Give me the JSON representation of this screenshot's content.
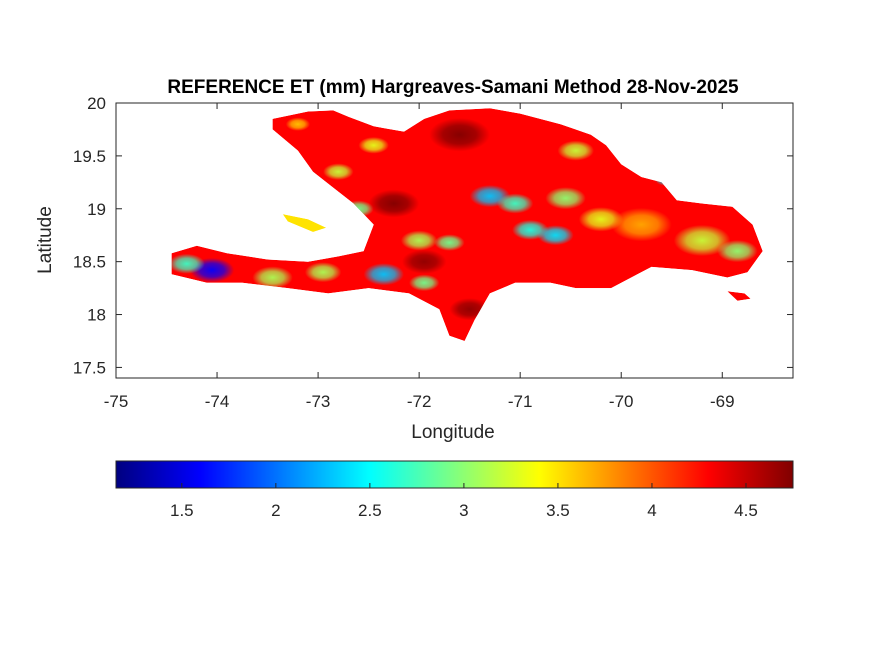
{
  "chart_data": {
    "type": "heatmap",
    "title": "REFERENCE ET (mm) Hargreaves-Samani Method  28-Nov-2025",
    "xlabel": "Longitude",
    "ylabel": "Latitude",
    "xlim": [
      -75,
      -68.3
    ],
    "ylim": [
      17.4,
      20
    ],
    "xticks": [
      -75,
      -74,
      -73,
      -72,
      -71,
      -70,
      -69
    ],
    "xtick_labels": [
      "-75",
      "-74",
      "-73",
      "-72",
      "-71",
      "-70",
      "-69"
    ],
    "yticks": [
      17.5,
      18,
      18.5,
      19,
      19.5,
      20
    ],
    "ytick_labels": [
      "17.5",
      "18",
      "18.5",
      "19",
      "19.5",
      "20"
    ],
    "grid": false,
    "colormap": "jet",
    "colorbar": {
      "orientation": "horizontal",
      "position": "bottom",
      "range": [
        1.15,
        4.75
      ],
      "ticks": [
        1.5,
        2,
        2.5,
        3,
        3.5,
        4,
        4.5
      ],
      "tick_labels": [
        "1.5",
        "2",
        "2.5",
        "3",
        "3.5",
        "4",
        "4.5"
      ]
    },
    "regions": [
      {
        "name": "main_island",
        "base_value": 4.3,
        "outline": [
          [
            -73.45,
            19.85
          ],
          [
            -73.1,
            19.92
          ],
          [
            -72.85,
            19.93
          ],
          [
            -72.7,
            19.87
          ],
          [
            -72.45,
            19.78
          ],
          [
            -72.15,
            19.73
          ],
          [
            -71.95,
            19.85
          ],
          [
            -71.7,
            19.93
          ],
          [
            -71.3,
            19.95
          ],
          [
            -71.0,
            19.9
          ],
          [
            -70.6,
            19.8
          ],
          [
            -70.3,
            19.7
          ],
          [
            -70.15,
            19.6
          ],
          [
            -70.0,
            19.42
          ],
          [
            -69.8,
            19.3
          ],
          [
            -69.6,
            19.25
          ],
          [
            -69.45,
            19.08
          ],
          [
            -69.2,
            19.05
          ],
          [
            -68.9,
            19.02
          ],
          [
            -68.7,
            18.85
          ],
          [
            -68.6,
            18.6
          ],
          [
            -68.75,
            18.4
          ],
          [
            -68.95,
            18.35
          ],
          [
            -69.3,
            18.42
          ],
          [
            -69.7,
            18.45
          ],
          [
            -70.1,
            18.25
          ],
          [
            -70.45,
            18.25
          ],
          [
            -70.7,
            18.3
          ],
          [
            -71.05,
            18.3
          ],
          [
            -71.3,
            18.2
          ],
          [
            -71.45,
            17.95
          ],
          [
            -71.55,
            17.75
          ],
          [
            -71.7,
            17.8
          ],
          [
            -71.8,
            18.05
          ],
          [
            -72.1,
            18.2
          ],
          [
            -72.5,
            18.25
          ],
          [
            -72.9,
            18.2
          ],
          [
            -73.3,
            18.25
          ],
          [
            -73.75,
            18.3
          ],
          [
            -74.1,
            18.3
          ],
          [
            -74.45,
            18.38
          ],
          [
            -74.45,
            18.58
          ],
          [
            -74.2,
            18.65
          ],
          [
            -73.9,
            18.58
          ],
          [
            -73.5,
            18.52
          ],
          [
            -73.1,
            18.5
          ],
          [
            -72.8,
            18.55
          ],
          [
            -72.55,
            18.6
          ],
          [
            -72.45,
            18.85
          ],
          [
            -72.65,
            19.05
          ],
          [
            -72.85,
            19.2
          ],
          [
            -73.05,
            19.35
          ],
          [
            -73.2,
            19.55
          ],
          [
            -73.45,
            19.75
          ]
        ]
      },
      {
        "name": "gonave_island",
        "base_value": 3.5,
        "outline": [
          [
            -73.35,
            18.95
          ],
          [
            -73.1,
            18.9
          ],
          [
            -72.92,
            18.82
          ],
          [
            -73.05,
            18.78
          ],
          [
            -73.3,
            18.88
          ]
        ]
      },
      {
        "name": "saona_island",
        "base_value": 4.3,
        "outline": [
          [
            -68.95,
            18.22
          ],
          [
            -68.78,
            18.2
          ],
          [
            -68.72,
            18.15
          ],
          [
            -68.85,
            18.13
          ]
        ]
      }
    ],
    "anomalies": [
      {
        "lon": -74.05,
        "lat": 18.42,
        "value": 1.6,
        "spread": 0.22
      },
      {
        "lon": -74.3,
        "lat": 18.48,
        "value": 2.7,
        "spread": 0.18
      },
      {
        "lon": -73.45,
        "lat": 18.35,
        "value": 3.1,
        "spread": 0.2
      },
      {
        "lon": -72.95,
        "lat": 18.4,
        "value": 3.1,
        "spread": 0.18
      },
      {
        "lon": -72.35,
        "lat": 18.38,
        "value": 2.3,
        "spread": 0.2
      },
      {
        "lon": -71.95,
        "lat": 18.3,
        "value": 2.9,
        "spread": 0.15
      },
      {
        "lon": -72.0,
        "lat": 18.7,
        "value": 3.1,
        "spread": 0.18
      },
      {
        "lon": -71.7,
        "lat": 18.68,
        "value": 2.9,
        "spread": 0.15
      },
      {
        "lon": -71.3,
        "lat": 19.12,
        "value": 2.3,
        "spread": 0.2
      },
      {
        "lon": -71.05,
        "lat": 19.05,
        "value": 2.7,
        "spread": 0.18
      },
      {
        "lon": -70.9,
        "lat": 18.8,
        "value": 2.6,
        "spread": 0.18
      },
      {
        "lon": -70.65,
        "lat": 18.75,
        "value": 2.4,
        "spread": 0.18
      },
      {
        "lon": -70.55,
        "lat": 19.1,
        "value": 3.0,
        "spread": 0.2
      },
      {
        "lon": -70.2,
        "lat": 18.9,
        "value": 3.3,
        "spread": 0.22
      },
      {
        "lon": -69.8,
        "lat": 18.85,
        "value": 3.7,
        "spread": 0.3
      },
      {
        "lon": -69.2,
        "lat": 18.7,
        "value": 3.2,
        "spread": 0.28
      },
      {
        "lon": -68.85,
        "lat": 18.6,
        "value": 3.0,
        "spread": 0.2
      },
      {
        "lon": -69.55,
        "lat": 19.28,
        "value": 2.4,
        "spread": 0.12
      },
      {
        "lon": -70.45,
        "lat": 19.55,
        "value": 3.2,
        "spread": 0.18
      },
      {
        "lon": -72.6,
        "lat": 19.0,
        "value": 2.9,
        "spread": 0.15
      },
      {
        "lon": -72.8,
        "lat": 19.35,
        "value": 3.2,
        "spread": 0.15
      },
      {
        "lon": -72.45,
        "lat": 19.6,
        "value": 3.3,
        "spread": 0.15
      },
      {
        "lon": -73.2,
        "lat": 19.8,
        "value": 3.6,
        "spread": 0.12
      },
      {
        "lon": -71.6,
        "lat": 19.7,
        "value": 4.75,
        "spread": 0.3
      },
      {
        "lon": -72.25,
        "lat": 19.05,
        "value": 4.75,
        "spread": 0.25
      },
      {
        "lon": -71.95,
        "lat": 18.5,
        "value": 4.7,
        "spread": 0.22
      },
      {
        "lon": -71.5,
        "lat": 18.05,
        "value": 4.7,
        "spread": 0.2
      }
    ]
  }
}
